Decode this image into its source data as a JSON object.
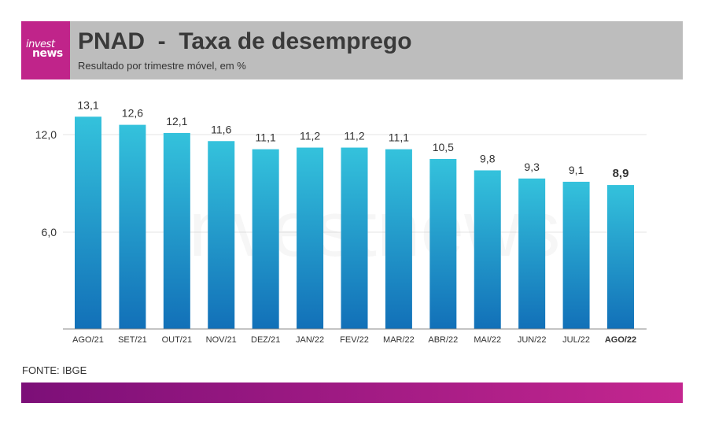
{
  "header": {
    "title": "PNAD  -  Taxa de desemprego",
    "subtitle": "Resultado por trimestre móvel, em %",
    "logo": {
      "line1": "invest",
      "line2": "news"
    }
  },
  "watermark": "investnews",
  "source": "FONTE: IBGE",
  "colors": {
    "header_bg": "#bdbdbd",
    "logo_bg": "#c0248a",
    "bar_top": "#34c2dc",
    "bar_bottom": "#1270b8",
    "footer_start": "#7c0f78",
    "footer_end": "#c4268f"
  },
  "chart_data": {
    "type": "bar",
    "categories": [
      "AGO/21",
      "SET/21",
      "OUT/21",
      "NOV/21",
      "DEZ/21",
      "JAN/22",
      "FEV/22",
      "MAR/22",
      "ABR/22",
      "MAI/22",
      "JUN/22",
      "JUL/22",
      "AGO/22"
    ],
    "values": [
      13.1,
      12.6,
      12.1,
      11.6,
      11.1,
      11.2,
      11.2,
      11.1,
      10.5,
      9.8,
      9.3,
      9.1,
      8.9
    ],
    "value_labels": [
      "13,1",
      "12,6",
      "12,1",
      "11,6",
      "11,1",
      "11,2",
      "11,2",
      "11,1",
      "10,5",
      "9,8",
      "9,3",
      "9,1",
      "8,9"
    ],
    "highlight_index": 12,
    "ylim": [
      3.9,
      13.6
    ],
    "yticks": [
      6.0,
      12.0
    ],
    "ytick_labels": [
      "6,0",
      "12,0"
    ],
    "grid": true,
    "legend": "none",
    "xlabel": "",
    "ylabel": ""
  }
}
